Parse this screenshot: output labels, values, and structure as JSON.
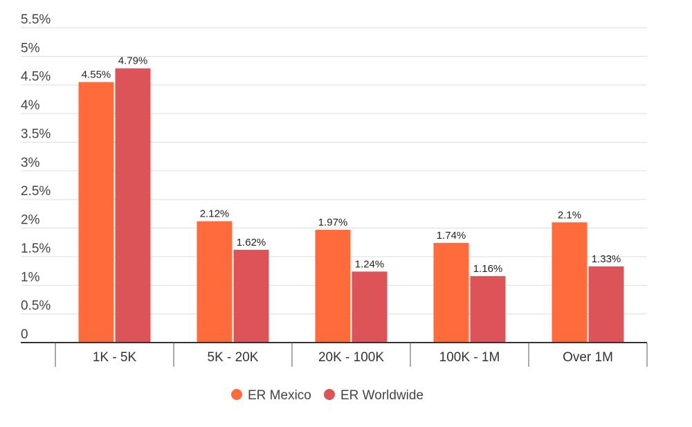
{
  "chart_data": {
    "type": "bar",
    "categories": [
      "1K - 5K",
      "5K - 20K",
      "20K - 100K",
      "100K - 1M",
      "Over 1M"
    ],
    "series": [
      {
        "name": "ER Mexico",
        "color": "#ff6b3b",
        "values": [
          4.55,
          2.12,
          1.97,
          1.74,
          2.1
        ],
        "labels": [
          "4.55%",
          "2.12%",
          "1.97%",
          "1.74%",
          "2.1%"
        ]
      },
      {
        "name": "ER Worldwide",
        "color": "#dc5358",
        "values": [
          4.79,
          1.62,
          1.24,
          1.16,
          1.33
        ],
        "labels": [
          "4.79%",
          "1.62%",
          "1.24%",
          "1.16%",
          "1.33%"
        ]
      }
    ],
    "y_ticks": [
      0,
      0.5,
      1,
      1.5,
      2,
      2.5,
      3,
      3.5,
      4,
      4.5,
      5,
      5.5
    ],
    "y_tick_labels": [
      "0",
      "0.5%",
      "1%",
      "1.5%",
      "2%",
      "2.5%",
      "3%",
      "3.5%",
      "4%",
      "4.5%",
      "5%",
      "5.5%"
    ],
    "ylim": [
      0,
      5.5
    ],
    "grid": true,
    "legend_position": "bottom-center"
  }
}
